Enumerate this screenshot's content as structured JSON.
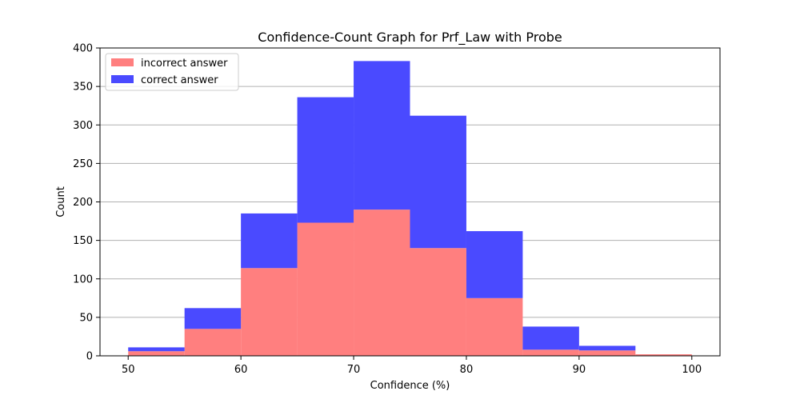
{
  "chart_data": {
    "type": "bar",
    "title": "Confidence-Count Graph for Prf_Law with Probe",
    "xlabel": "Confidence (%)",
    "ylabel": "Count",
    "xlim": [
      47.5,
      102.5
    ],
    "ylim": [
      0,
      400
    ],
    "xticks": [
      50,
      60,
      70,
      80,
      90,
      100
    ],
    "yticks": [
      0,
      50,
      100,
      150,
      200,
      250,
      300,
      350,
      400
    ],
    "grid": "y",
    "legend_position": "top-left",
    "stacked": true,
    "bins": [
      [
        50,
        55
      ],
      [
        55,
        60
      ],
      [
        60,
        65
      ],
      [
        65,
        70
      ],
      [
        70,
        75
      ],
      [
        75,
        80
      ],
      [
        80,
        85
      ],
      [
        85,
        90
      ],
      [
        90,
        95
      ],
      [
        95,
        100
      ]
    ],
    "series": [
      {
        "name": "incorrect answer",
        "color": "#ff7f7f",
        "values": [
          6,
          35,
          114,
          173,
          190,
          140,
          75,
          8,
          7,
          2
        ]
      },
      {
        "name": "correct answer",
        "color": "#4a4aff",
        "values": [
          5,
          27,
          71,
          163,
          193,
          172,
          87,
          30,
          6,
          0
        ]
      }
    ]
  }
}
